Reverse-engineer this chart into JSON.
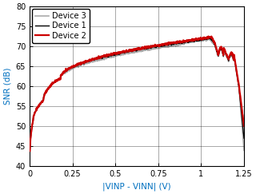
{
  "xlabel": "|VINP - VINN| (V)",
  "ylabel": "SNR (dB)",
  "xlim": [
    0,
    1.25
  ],
  "ylim": [
    40,
    80
  ],
  "xticks": [
    0,
    0.25,
    0.5,
    0.75,
    1.0,
    1.25
  ],
  "yticks": [
    40,
    45,
    50,
    55,
    60,
    65,
    70,
    75,
    80
  ],
  "device1_color": "#000000",
  "device2_color": "#cc0000",
  "device3_color": "#aaaaaa",
  "device1_lw": 1.0,
  "device2_lw": 1.6,
  "device3_lw": 1.2,
  "legend_labels": [
    "Device 1",
    "Device 2",
    "Device 3"
  ],
  "legend_fontsize": 7,
  "axis_label_fontsize": 7.5,
  "tick_fontsize": 7,
  "label_color": "#0070c0"
}
